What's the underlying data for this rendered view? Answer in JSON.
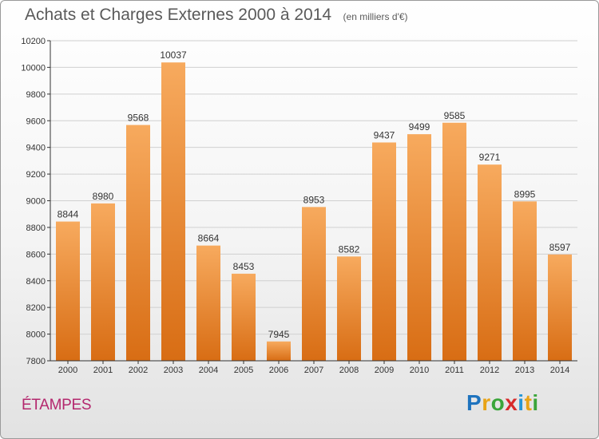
{
  "header": {
    "title": "Achats et Charges Externes 2000 à 2014",
    "unit": "(en milliers d'€)"
  },
  "footer": {
    "city": "ÉTAMPES",
    "logo": "Proxiti"
  },
  "colors": {
    "bar_light": "#f7aa5e",
    "bar_dark": "#d86d14",
    "axis": "#333333",
    "grid": "#d0d0d0",
    "city": "#b4286e"
  },
  "chart_data": {
    "type": "bar",
    "categories": [
      "2000",
      "2001",
      "2002",
      "2003",
      "2004",
      "2005",
      "2006",
      "2007",
      "2008",
      "2009",
      "2010",
      "2011",
      "2012",
      "2013",
      "2014"
    ],
    "values": [
      8844,
      8980,
      9568,
      10037,
      8664,
      8453,
      7945,
      8953,
      8582,
      9437,
      9499,
      9585,
      9271,
      8995,
      8597
    ],
    "ylim": [
      7800,
      10200
    ],
    "yticks": [
      7800,
      8000,
      8200,
      8400,
      8600,
      8800,
      9000,
      9200,
      9400,
      9600,
      9800,
      10000,
      10200
    ],
    "grid": true,
    "data_labels": true
  }
}
